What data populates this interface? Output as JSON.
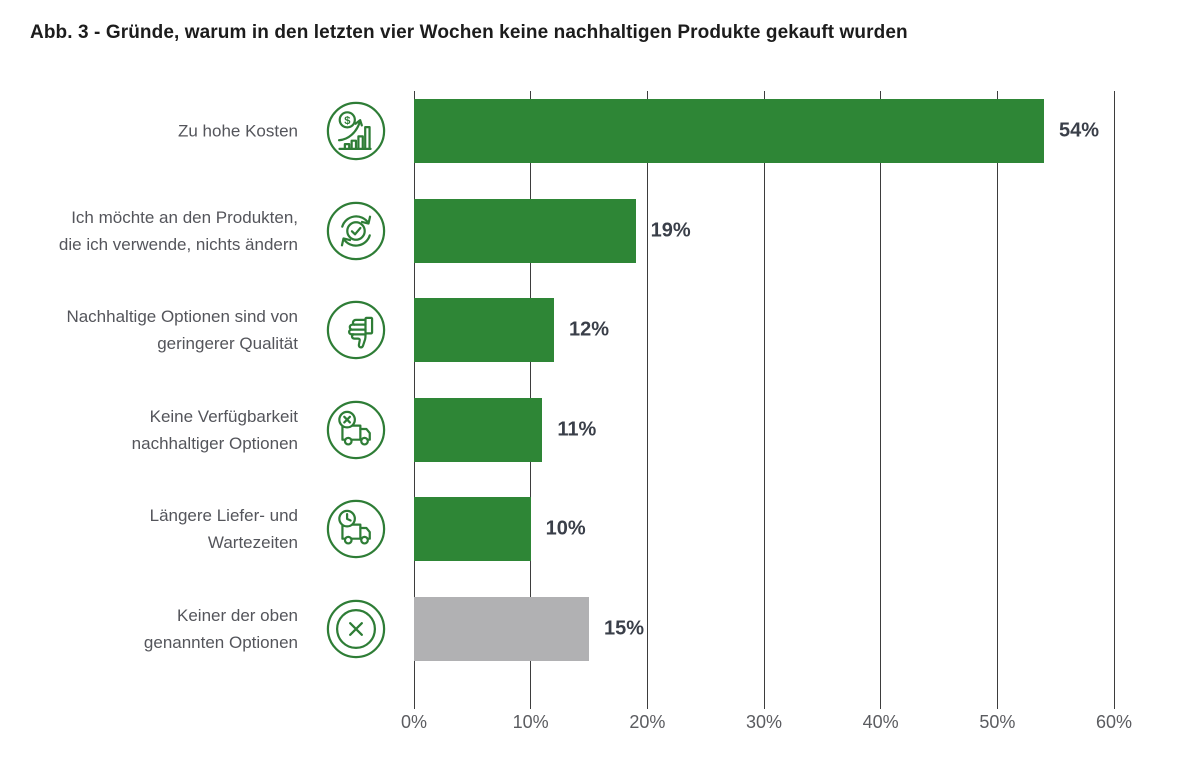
{
  "title": "Abb. 3 - Gründe, warum in den letzten vier Wochen keine nachhaltigen Produkte gekauft wurden",
  "chart_data": {
    "type": "bar",
    "orientation": "horizontal",
    "title": "Abb. 3 - Gründe, warum in den letzten vier Wochen keine nachhaltigen Produkte gekauft wurden",
    "categories": [
      "Zu hohe Kosten",
      "Ich möchte an den Produkten, die ich verwende, nichts ändern",
      "Nachhaltige Optionen sind von geringerer Qualität",
      "Keine Verfügbarkeit nachhaltiger Optionen",
      "Längere Liefer- und Wartezeiten",
      "Keiner der oben genannten Optionen"
    ],
    "category_lines": [
      [
        "Zu hohe Kosten"
      ],
      [
        "Ich möchte an den Produkten,",
        "die ich verwende, nichts ändern"
      ],
      [
        "Nachhaltige Optionen sind von",
        "geringerer Qualität"
      ],
      [
        "Keine Verfügbarkeit",
        "nachhaltiger Optionen"
      ],
      [
        "Längere Liefer- und",
        "Wartezeiten"
      ],
      [
        "Keiner der oben",
        "genannten Optionen"
      ]
    ],
    "values": [
      54,
      19,
      12,
      11,
      10,
      15
    ],
    "value_labels": [
      "54%",
      "19%",
      "12%",
      "11%",
      "10%",
      "15%"
    ],
    "bar_colors": [
      "#2e8636",
      "#2e8636",
      "#2e8636",
      "#2e8636",
      "#2e8636",
      "#b1b1b3"
    ],
    "icons": [
      "cost-chart-icon",
      "refresh-check-icon",
      "thumbs-down-icon",
      "delivery-unavailable-icon",
      "delivery-time-icon",
      "none-cross-icon"
    ],
    "xlabel": "",
    "ylabel": "",
    "xlim": [
      0,
      60
    ],
    "x_ticks": [
      0,
      10,
      20,
      30,
      40,
      50,
      60
    ],
    "x_tick_labels": [
      "0%",
      "10%",
      "20%",
      "30%",
      "40%",
      "50%",
      "60%"
    ],
    "grid": "vertical-gridlines-only",
    "legend": "none",
    "colors": {
      "bar_green": "#2e8636",
      "bar_gray": "#b1b1b3",
      "icon_green": "#2e7d36",
      "gridline": "#3d3d3d",
      "title_text": "#1c1c1c",
      "category_text": "#54555b",
      "value_text": "#3a3f49",
      "tick_text": "#5b5c60"
    }
  }
}
